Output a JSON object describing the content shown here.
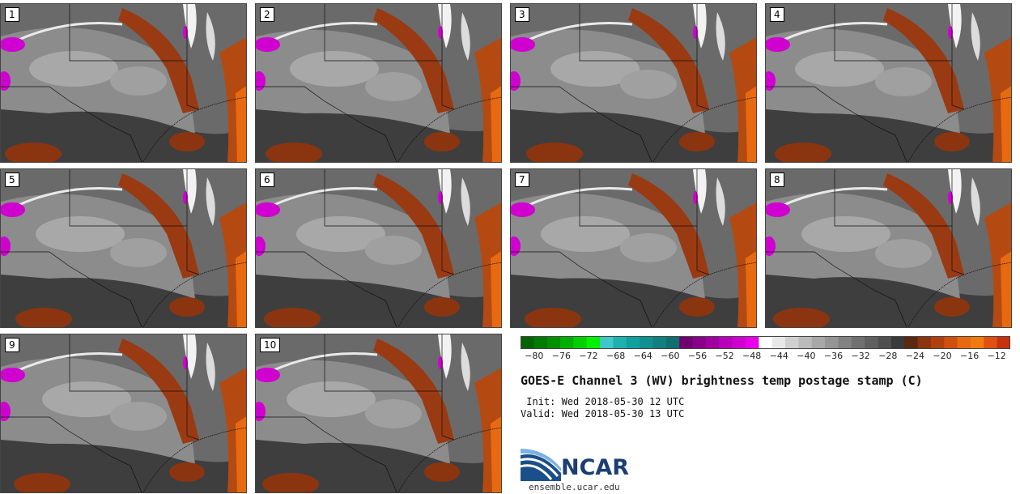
{
  "panels": [
    {
      "label": "1"
    },
    {
      "label": "2"
    },
    {
      "label": "3"
    },
    {
      "label": "4"
    },
    {
      "label": "5"
    },
    {
      "label": "6"
    },
    {
      "label": "7"
    },
    {
      "label": "8"
    },
    {
      "label": "9"
    },
    {
      "label": "10"
    }
  ],
  "colorbar": {
    "ticks": [
      "−80",
      "−76",
      "−72",
      "−68",
      "−64",
      "−60",
      "−56",
      "−52",
      "−48",
      "−44",
      "−40",
      "−36",
      "−32",
      "−28",
      "−24",
      "−20",
      "−16",
      "−12"
    ],
    "min": -82,
    "max": -10,
    "colors": [
      "#006400",
      "#007a00",
      "#009000",
      "#00b000",
      "#00d000",
      "#00f000",
      "#40c8c8",
      "#20b0b0",
      "#10a0a0",
      "#109090",
      "#108080",
      "#107070",
      "#700070",
      "#880088",
      "#a000a0",
      "#b800b8",
      "#d000d0",
      "#e800e8",
      "#ffffff",
      "#e8e8e8",
      "#d0d0d0",
      "#bbbbbb",
      "#a8a8a8",
      "#959595",
      "#828282",
      "#707070",
      "#606060",
      "#505050",
      "#3a3a3a",
      "#5a2a10",
      "#8a3510",
      "#b04010",
      "#d05010",
      "#e86a10",
      "#f07a10",
      "#e05010",
      "#c83010"
    ]
  },
  "title": "GOES-E Channel 3 (WV) brightness temp postage stamp (C)",
  "init_line": " Init: Wed 2018-05-30 12 UTC",
  "valid_line": "Valid: Wed 2018-05-30 13 UTC",
  "logo": {
    "text": "NCAR",
    "url": "ensemble.ucar.edu"
  }
}
